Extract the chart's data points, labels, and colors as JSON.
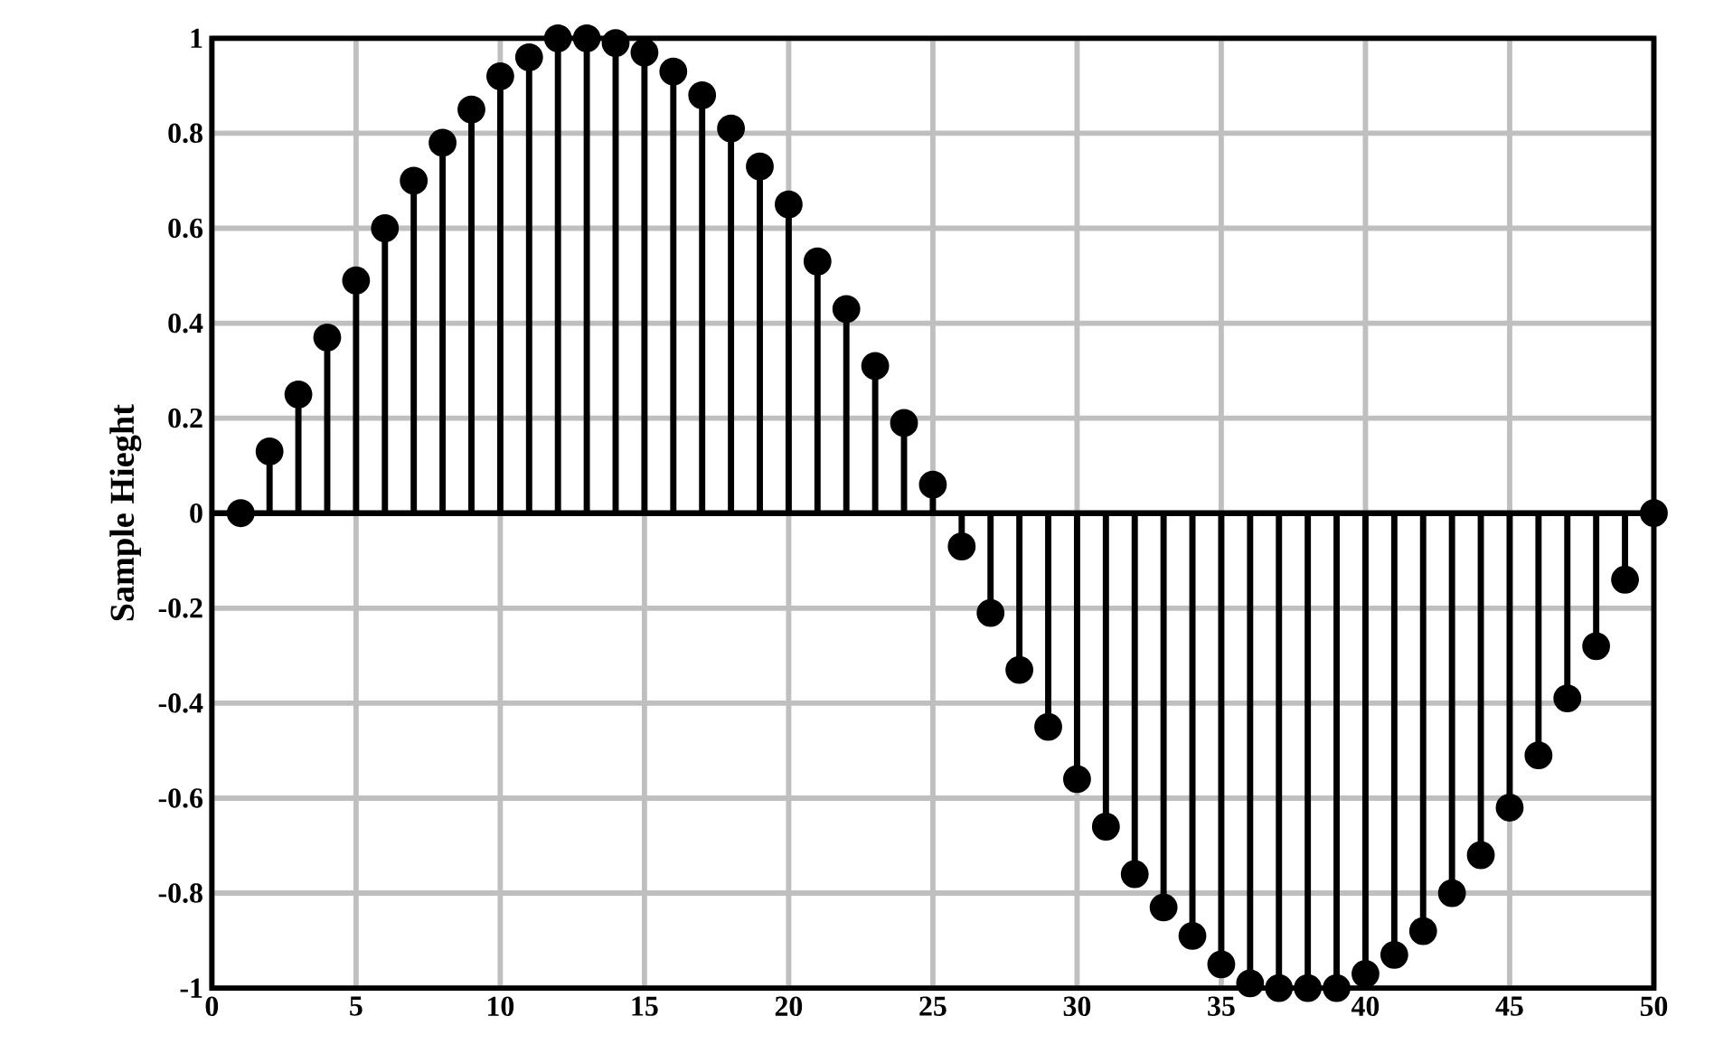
{
  "chart_data": {
    "type": "lollipop",
    "ylabel": "Sample Hieght",
    "color": "#000000",
    "marker": "circle",
    "grid": true,
    "x": [
      1,
      2,
      3,
      4,
      5,
      6,
      7,
      8,
      9,
      10,
      11,
      12,
      13,
      14,
      15,
      16,
      17,
      18,
      19,
      20,
      21,
      22,
      23,
      24,
      25,
      26,
      27,
      28,
      29,
      30,
      31,
      32,
      33,
      34,
      35,
      36,
      37,
      38,
      39,
      40,
      41,
      42,
      43,
      44,
      45,
      46,
      47,
      48,
      49,
      50
    ],
    "values": [
      0,
      0.13,
      0.25,
      0.37,
      0.49,
      0.6,
      0.7,
      0.78,
      0.85,
      0.92,
      0.96,
      1.0,
      1.0,
      0.99,
      0.97,
      0.93,
      0.88,
      0.81,
      0.73,
      0.65,
      0.53,
      0.43,
      0.31,
      0.19,
      0.06,
      -0.07,
      -0.21,
      -0.33,
      -0.45,
      -0.56,
      -0.66,
      -0.76,
      -0.83,
      -0.89,
      -0.95,
      -0.99,
      -1.0,
      -1.0,
      -1.0,
      -0.97,
      -0.93,
      -0.88,
      -0.8,
      -0.72,
      -0.62,
      -0.51,
      -0.39,
      -0.28,
      -0.14,
      0
    ],
    "xlim": [
      0,
      50
    ],
    "ylim": [
      -1,
      1
    ],
    "xticks": [
      0,
      5,
      10,
      15,
      20,
      25,
      30,
      35,
      40,
      45,
      50
    ],
    "yticks": [
      -1,
      -0.8,
      -0.6,
      -0.4,
      -0.2,
      0,
      0.2,
      0.4,
      0.6,
      0.8,
      1
    ]
  }
}
